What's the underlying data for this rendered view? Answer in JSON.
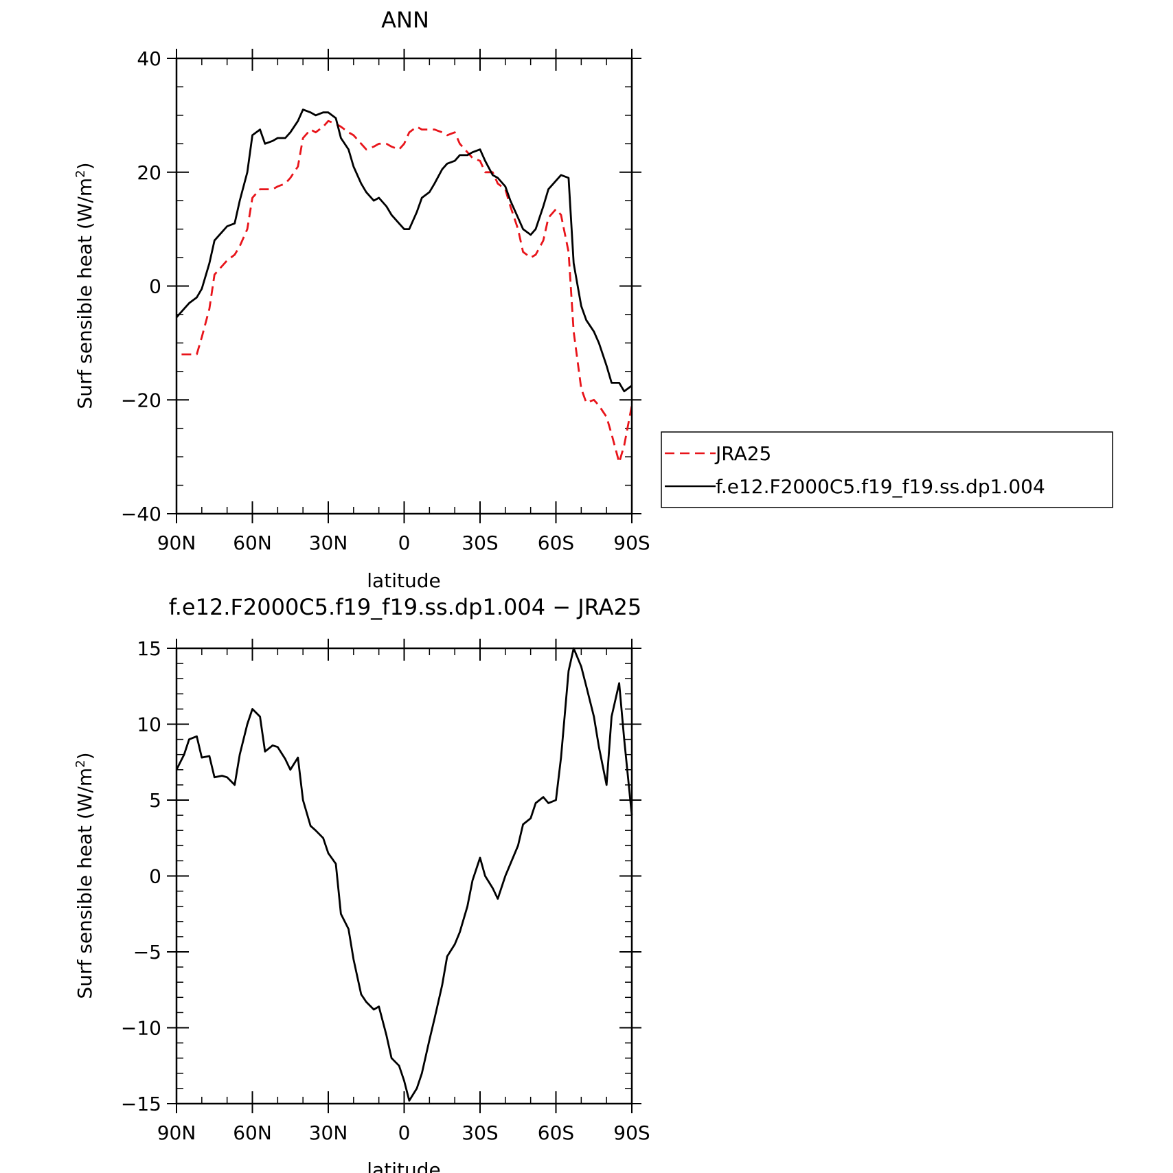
{
  "chart_data": [
    {
      "type": "line",
      "title": "ANN",
      "xlabel": "latitude",
      "ylabel": "Surf sensible heat (W/m",
      "ylabel_sup": "2",
      "ylabel_close": ")",
      "xlim": [
        90,
        -90
      ],
      "ylim": [
        -40,
        40
      ],
      "xticks": [
        {
          "value": 90,
          "label": "90N"
        },
        {
          "value": 60,
          "label": "60N"
        },
        {
          "value": 30,
          "label": "30N"
        },
        {
          "value": 0,
          "label": "0"
        },
        {
          "value": -30,
          "label": "30S"
        },
        {
          "value": -60,
          "label": "60S"
        },
        {
          "value": -90,
          "label": "90S"
        }
      ],
      "yticks": [
        {
          "value": 40,
          "label": "40"
        },
        {
          "value": 20,
          "label": "20"
        },
        {
          "value": 0,
          "label": "0"
        },
        {
          "value": -20,
          "label": "−20"
        },
        {
          "value": -40,
          "label": "−40"
        }
      ],
      "legend_position": "right",
      "series": [
        {
          "name": "JRA25",
          "color": "#e8141a",
          "dash": true,
          "x": [
            88,
            85,
            82,
            80,
            77,
            75,
            72,
            70,
            67,
            65,
            62,
            60,
            57,
            55,
            52,
            50,
            47,
            45,
            42,
            40,
            37,
            35,
            32,
            30,
            27,
            25,
            22,
            20,
            17,
            15,
            12,
            10,
            7,
            5,
            2,
            0,
            -2,
            -5,
            -7,
            -10,
            -12,
            -15,
            -17,
            -20,
            -22,
            -25,
            -27,
            -30,
            -32,
            -35,
            -37,
            -40,
            -42,
            -45,
            -47,
            -50,
            -52,
            -55,
            -57,
            -60,
            -62,
            -65,
            -67,
            -70,
            -72,
            -75,
            -77,
            -80,
            -82,
            -85,
            -87,
            -90
          ],
          "y": [
            -12,
            -12,
            -12,
            -9,
            -4,
            2,
            3.5,
            4.5,
            5.5,
            7,
            10,
            15.5,
            17,
            17,
            17,
            17.5,
            18,
            19,
            21,
            26,
            27.5,
            27,
            28,
            29,
            28.5,
            28,
            27,
            26.5,
            25,
            24,
            24.5,
            25,
            25,
            24.5,
            24,
            25,
            27,
            28,
            27.5,
            27.5,
            27.5,
            27,
            26.5,
            27,
            25,
            23.5,
            22.5,
            22,
            20,
            20,
            18,
            17,
            14,
            10,
            6,
            5,
            5.5,
            8,
            12,
            13.5,
            12.5,
            6,
            -8,
            -18,
            -20.5,
            -20,
            -21,
            -23,
            -26,
            -31,
            -28,
            -21
          ]
        },
        {
          "name": "f.e12.F2000C5.f19_f19.ss.dp1.004",
          "color": "#000000",
          "dash": false,
          "x": [
            90,
            87,
            85,
            82,
            80,
            77,
            75,
            72,
            70,
            67,
            65,
            62,
            60,
            57,
            55,
            52,
            50,
            47,
            45,
            42,
            40,
            37,
            35,
            32,
            30,
            27,
            25,
            22,
            20,
            17,
            15,
            12,
            10,
            7,
            5,
            2,
            0,
            -2,
            -5,
            -7,
            -10,
            -12,
            -15,
            -17,
            -20,
            -22,
            -25,
            -27,
            -30,
            -32,
            -35,
            -37,
            -40,
            -42,
            -45,
            -47,
            -50,
            -52,
            -55,
            -57,
            -60,
            -62,
            -65,
            -67,
            -70,
            -72,
            -75,
            -77,
            -80,
            -82,
            -85,
            -87,
            -90
          ],
          "y": [
            -5.5,
            -4,
            -3,
            -2,
            -0.5,
            4,
            8,
            9.5,
            10.5,
            11,
            15,
            20,
            26.5,
            27.5,
            25,
            25.5,
            26,
            26,
            27,
            29,
            31,
            30.5,
            30,
            30.5,
            30.5,
            29.5,
            26,
            24,
            21,
            18,
            16.5,
            15,
            15.5,
            14,
            12.5,
            11,
            10,
            10,
            13,
            15.5,
            16.5,
            18,
            20.5,
            21.5,
            22,
            23,
            23,
            23.5,
            24,
            22,
            19.5,
            19,
            17.5,
            15,
            12,
            10,
            9,
            10,
            14,
            17,
            18.5,
            19.5,
            19,
            4,
            -3.5,
            -6,
            -8,
            -10,
            -14,
            -17,
            -17,
            -18.5,
            -17.5
          ]
        }
      ]
    },
    {
      "type": "line",
      "title": "f.e12.F2000C5.f19_f19.ss.dp1.004 − JRA25",
      "xlabel": "latitude",
      "ylabel": "Surf sensible heat (W/m",
      "ylabel_sup": "2",
      "ylabel_close": ")",
      "xlim": [
        90,
        -90
      ],
      "ylim": [
        -15,
        15
      ],
      "xticks": [
        {
          "value": 90,
          "label": "90N"
        },
        {
          "value": 60,
          "label": "60N"
        },
        {
          "value": 30,
          "label": "30N"
        },
        {
          "value": 0,
          "label": "0"
        },
        {
          "value": -30,
          "label": "30S"
        },
        {
          "value": -60,
          "label": "60S"
        },
        {
          "value": -90,
          "label": "90S"
        }
      ],
      "yticks": [
        {
          "value": 15,
          "label": "15"
        },
        {
          "value": 10,
          "label": "10"
        },
        {
          "value": 5,
          "label": "5"
        },
        {
          "value": 0,
          "label": "0"
        },
        {
          "value": -5,
          "label": "−5"
        },
        {
          "value": -10,
          "label": "−10"
        },
        {
          "value": -15,
          "label": "−15"
        }
      ],
      "series": [
        {
          "color": "#000000",
          "dash": false,
          "x": [
            90,
            87,
            85,
            82,
            80,
            77,
            75,
            72,
            70,
            67,
            65,
            62,
            60,
            57,
            55,
            52,
            50,
            47,
            45,
            42,
            40,
            37,
            35,
            32,
            30,
            27,
            25,
            22,
            20,
            17,
            15,
            12,
            10,
            7,
            5,
            2,
            0,
            -2,
            -5,
            -7,
            -10,
            -12,
            -15,
            -17,
            -20,
            -22,
            -25,
            -27,
            -30,
            -32,
            -35,
            -37,
            -40,
            -42,
            -45,
            -47,
            -50,
            -52,
            -55,
            -57,
            -60,
            -62,
            -65,
            -67,
            -70,
            -72,
            -75,
            -77,
            -80,
            -82,
            -85,
            -87,
            -90
          ],
          "y": [
            7,
            8,
            9,
            9.2,
            7.8,
            7.9,
            6.5,
            6.6,
            6.5,
            6,
            8,
            10,
            11,
            10.5,
            8.2,
            8.6,
            8.5,
            7.7,
            7,
            7.8,
            5,
            3.3,
            3,
            2.5,
            1.5,
            0.8,
            -2.5,
            -3.5,
            -5.5,
            -7.8,
            -8.3,
            -8.8,
            -8.6,
            -10.5,
            -12,
            -12.5,
            -13.5,
            -14.8,
            -14,
            -13,
            -10.8,
            -9.4,
            -7.2,
            -5.3,
            -4.5,
            -3.7,
            -2,
            -0.3,
            1.2,
            0,
            -0.8,
            -1.5,
            0,
            0.8,
            2,
            3.4,
            3.8,
            4.8,
            5.2,
            4.8,
            5,
            7.8,
            13.5,
            15,
            13.8,
            12.5,
            10.5,
            8.5,
            6,
            10.5,
            12.7,
            9,
            4
          ]
        }
      ]
    }
  ]
}
